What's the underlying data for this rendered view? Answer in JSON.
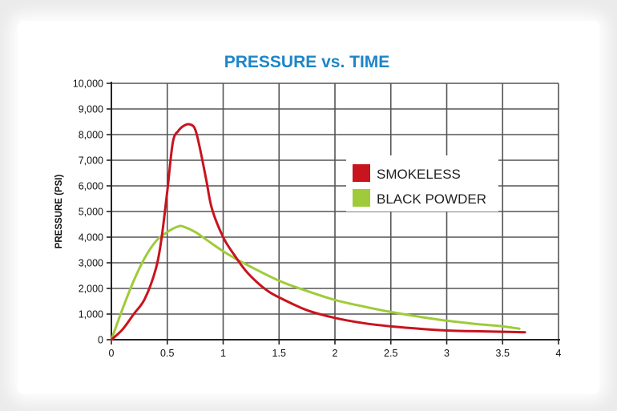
{
  "chart_data": {
    "type": "line",
    "title": "PRESSURE vs. TIME",
    "xlabel": "",
    "ylabel": "PRESSURE (PSI)",
    "xlim": [
      0,
      4
    ],
    "ylim": [
      0,
      10000
    ],
    "grid": true,
    "legend_position": "right",
    "x_ticks": [
      "0",
      "0.5",
      "1",
      "1.5",
      "2",
      "2.5",
      "3",
      "3.5",
      "4"
    ],
    "y_ticks": [
      "0",
      "1,000",
      "2,000",
      "3,000",
      "4,000",
      "5,000",
      "6,000",
      "7,000",
      "8,000",
      "9,000",
      "10,000"
    ],
    "series": [
      {
        "name": "SMOKELESS",
        "color": "#c8141e",
        "points": [
          [
            0,
            0
          ],
          [
            0.1,
            400
          ],
          [
            0.2,
            1000
          ],
          [
            0.3,
            1600
          ],
          [
            0.4,
            2800
          ],
          [
            0.45,
            4000
          ],
          [
            0.5,
            5800
          ],
          [
            0.55,
            7700
          ],
          [
            0.6,
            8150
          ],
          [
            0.65,
            8350
          ],
          [
            0.7,
            8400
          ],
          [
            0.75,
            8200
          ],
          [
            0.8,
            7300
          ],
          [
            0.85,
            6200
          ],
          [
            0.9,
            5100
          ],
          [
            1.0,
            4000
          ],
          [
            1.1,
            3300
          ],
          [
            1.2,
            2700
          ],
          [
            1.3,
            2250
          ],
          [
            1.4,
            1900
          ],
          [
            1.5,
            1650
          ],
          [
            1.75,
            1150
          ],
          [
            2.0,
            850
          ],
          [
            2.25,
            650
          ],
          [
            2.5,
            520
          ],
          [
            2.75,
            430
          ],
          [
            3.0,
            360
          ],
          [
            3.25,
            330
          ],
          [
            3.5,
            310
          ],
          [
            3.7,
            290
          ]
        ]
      },
      {
        "name": "BLACK POWDER",
        "color": "#9fcb3a",
        "points": [
          [
            0,
            0
          ],
          [
            0.1,
            1200
          ],
          [
            0.2,
            2300
          ],
          [
            0.3,
            3200
          ],
          [
            0.4,
            3850
          ],
          [
            0.5,
            4200
          ],
          [
            0.6,
            4420
          ],
          [
            0.65,
            4400
          ],
          [
            0.75,
            4200
          ],
          [
            0.85,
            3900
          ],
          [
            1.0,
            3450
          ],
          [
            1.2,
            2950
          ],
          [
            1.5,
            2300
          ],
          [
            1.75,
            1900
          ],
          [
            2.0,
            1550
          ],
          [
            2.25,
            1300
          ],
          [
            2.5,
            1080
          ],
          [
            2.75,
            900
          ],
          [
            3.0,
            740
          ],
          [
            3.25,
            620
          ],
          [
            3.5,
            520
          ],
          [
            3.65,
            430
          ]
        ]
      }
    ]
  }
}
